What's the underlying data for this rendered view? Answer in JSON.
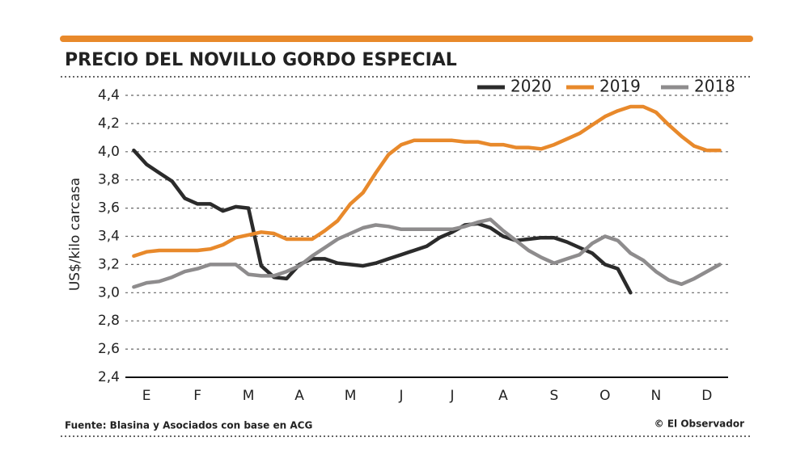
{
  "chart_data": {
    "type": "line",
    "title": "PRECIO DEL NOVILLO GORDO ESPECIAL",
    "y_label": "US$/kilo carcasa",
    "source": "Fuente: Blasina y Asociados con base en ACG",
    "credit": "© El Observador",
    "x": [
      -0.25,
      0,
      0.25,
      0.5,
      0.75,
      1,
      1.25,
      1.5,
      1.75,
      2,
      2.25,
      2.5,
      2.75,
      3,
      3.25,
      3.5,
      3.75,
      4,
      4.25,
      4.5,
      4.75,
      5,
      5.25,
      5.5,
      5.75,
      6,
      6.25,
      6.5,
      6.75,
      7,
      7.25,
      7.5,
      7.75,
      8,
      8.25,
      8.5,
      8.75,
      9,
      9.25,
      9.5,
      9.75,
      10,
      10.25,
      10.5,
      10.75,
      11,
      11.25
    ],
    "xlim": [
      -0.4,
      11.4
    ],
    "xticks": [
      {
        "value": 0,
        "label": "E"
      },
      {
        "value": 1,
        "label": "F"
      },
      {
        "value": 2,
        "label": "M"
      },
      {
        "value": 3,
        "label": "A"
      },
      {
        "value": 4,
        "label": "M"
      },
      {
        "value": 5,
        "label": "J"
      },
      {
        "value": 6,
        "label": "J"
      },
      {
        "value": 7,
        "label": "A"
      },
      {
        "value": 8,
        "label": "S"
      },
      {
        "value": 9,
        "label": "O"
      },
      {
        "value": 10,
        "label": "N"
      },
      {
        "value": 11,
        "label": "D"
      }
    ],
    "ylim": [
      2.4,
      4.4
    ],
    "yticks": [
      {
        "value": 2.4,
        "label": "2,4"
      },
      {
        "value": 2.6,
        "label": "2,6"
      },
      {
        "value": 2.8,
        "label": "2,8"
      },
      {
        "value": 3.0,
        "label": "3,0"
      },
      {
        "value": 3.2,
        "label": "3,2"
      },
      {
        "value": 3.4,
        "label": "3,4"
      },
      {
        "value": 3.6,
        "label": "3,6"
      },
      {
        "value": 3.8,
        "label": "3,8"
      },
      {
        "value": 4.0,
        "label": "4,0"
      },
      {
        "value": 4.2,
        "label": "4,2"
      },
      {
        "value": 4.4,
        "label": "4,4"
      }
    ],
    "grid": true,
    "legend": "top-right",
    "series": [
      {
        "name": "2020",
        "color": "#2b2b2b",
        "values": [
          4.01,
          3.91,
          3.85,
          3.79,
          3.67,
          3.63,
          3.63,
          3.58,
          3.61,
          3.6,
          3.19,
          3.11,
          3.1,
          3.2,
          3.24,
          3.24,
          3.21,
          3.2,
          3.19,
          3.21,
          3.24,
          3.27,
          3.3,
          3.33,
          3.39,
          3.43,
          3.48,
          3.49,
          3.46,
          3.4,
          3.37,
          3.38,
          3.39,
          3.39,
          3.36,
          3.32,
          3.28,
          3.2,
          3.17,
          3.0,
          null,
          null,
          null,
          null,
          null,
          null,
          null
        ]
      },
      {
        "name": "2019",
        "color": "#e8892b",
        "values": [
          3.26,
          3.29,
          3.3,
          3.3,
          3.3,
          3.3,
          3.31,
          3.34,
          3.39,
          3.41,
          3.43,
          3.42,
          3.38,
          3.38,
          3.38,
          3.44,
          3.51,
          3.63,
          3.71,
          3.85,
          3.98,
          4.05,
          4.08,
          4.08,
          4.08,
          4.08,
          4.07,
          4.07,
          4.05,
          4.05,
          4.03,
          4.03,
          4.02,
          4.05,
          4.09,
          4.13,
          4.19,
          4.25,
          4.29,
          4.32,
          4.32,
          4.28,
          4.19,
          4.11,
          4.04,
          4.01,
          4.01
        ]
      },
      {
        "name": "2018",
        "color": "#8e8c8d",
        "values": [
          3.04,
          3.07,
          3.08,
          3.11,
          3.15,
          3.17,
          3.2,
          3.2,
          3.2,
          3.13,
          3.12,
          3.12,
          3.15,
          3.19,
          3.26,
          3.32,
          3.38,
          3.42,
          3.46,
          3.48,
          3.47,
          3.45,
          3.45,
          3.45,
          3.45,
          3.45,
          3.47,
          3.5,
          3.52,
          3.44,
          3.37,
          3.3,
          3.25,
          3.21,
          3.24,
          3.27,
          3.35,
          3.4,
          3.37,
          3.28,
          3.23,
          3.15,
          3.09,
          3.06,
          3.1,
          3.15,
          3.2
        ]
      }
    ]
  }
}
